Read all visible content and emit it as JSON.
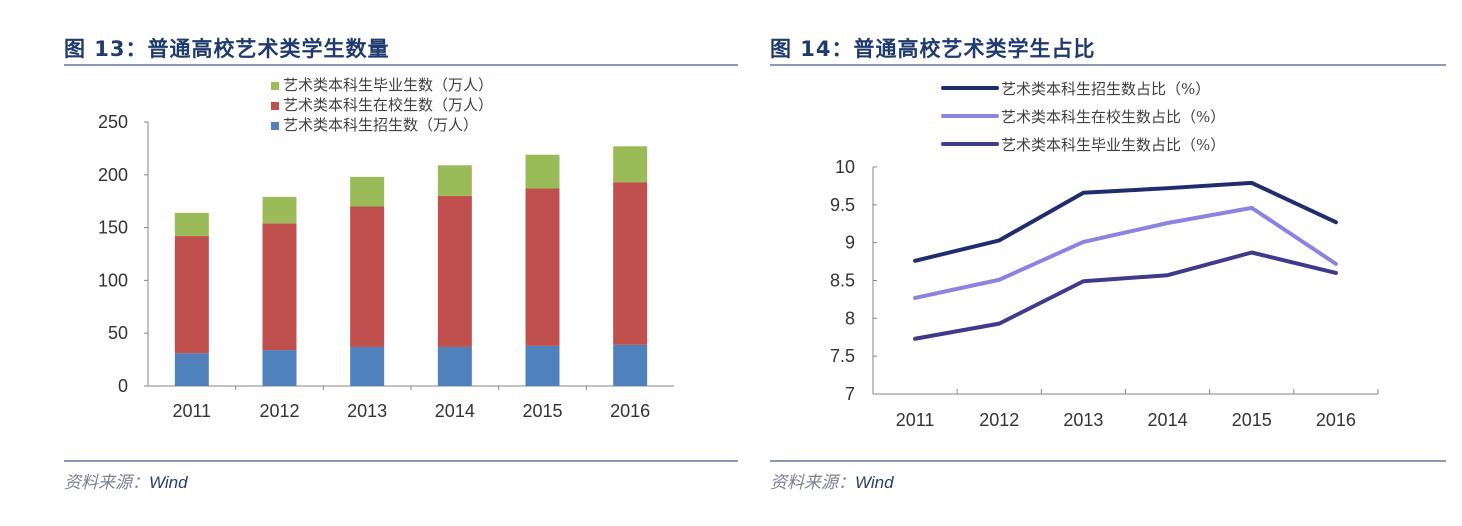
{
  "charts": {
    "left": {
      "title": "图 13：普通高校艺术类学生数量",
      "source_label": "资料来源：",
      "source_value": "Wind"
    },
    "right": {
      "title": "图 14：普通高校艺术类学生占比",
      "source_label": "资料来源：",
      "source_value": "Wind"
    }
  },
  "chart_data": [
    {
      "type": "bar",
      "stacked": true,
      "title": "图 13：普通高校艺术类学生数量",
      "categories": [
        "2011",
        "2012",
        "2013",
        "2014",
        "2015",
        "2016"
      ],
      "series": [
        {
          "name": "艺术类本科生招生数（万人）",
          "color": "#4f81bd",
          "values": [
            31,
            34,
            37,
            37,
            38,
            39
          ]
        },
        {
          "name": "艺术类本科生在校生数（万人）",
          "color": "#c0504d",
          "values": [
            111,
            120,
            133,
            143,
            149,
            154
          ]
        },
        {
          "name": "艺术类本科生毕业生数（万人）",
          "color": "#9bbb59",
          "values": [
            22,
            25,
            28,
            29,
            32,
            34
          ]
        }
      ],
      "legend_order": [
        "艺术类本科生毕业生数（万人）",
        "艺术类本科生在校生数（万人）",
        "艺术类本科生招生数（万人）"
      ],
      "ylim": [
        0,
        250
      ],
      "yticks": [
        "0",
        "50",
        "100",
        "150",
        "200",
        "250"
      ],
      "xlabel": "",
      "ylabel": "",
      "grid": false,
      "legend_position": "top-center"
    },
    {
      "type": "line",
      "title": "图 14：普通高校艺术类学生占比",
      "categories": [
        "2011",
        "2012",
        "2013",
        "2014",
        "2015",
        "2016"
      ],
      "series": [
        {
          "name": "艺术类本科生招生数占比（%）",
          "color": "#1f2d6e",
          "values": [
            8.76,
            9.03,
            9.66,
            9.72,
            9.79,
            9.27
          ]
        },
        {
          "name": "艺术类本科生在校生数占比（%）",
          "color": "#8b83e0",
          "values": [
            8.27,
            8.51,
            9.01,
            9.26,
            9.46,
            8.72
          ]
        },
        {
          "name": "艺术类本科生毕业生数占比（%）",
          "color": "#3f3a8c",
          "values": [
            7.73,
            7.93,
            8.49,
            8.57,
            8.87,
            8.6
          ]
        }
      ],
      "ylim": [
        7,
        10
      ],
      "yticks": [
        "7",
        "7.5",
        "8",
        "8.5",
        "9",
        "9.5",
        "10"
      ],
      "xlabel": "",
      "ylabel": "",
      "grid": false,
      "legend_position": "top-center"
    }
  ]
}
